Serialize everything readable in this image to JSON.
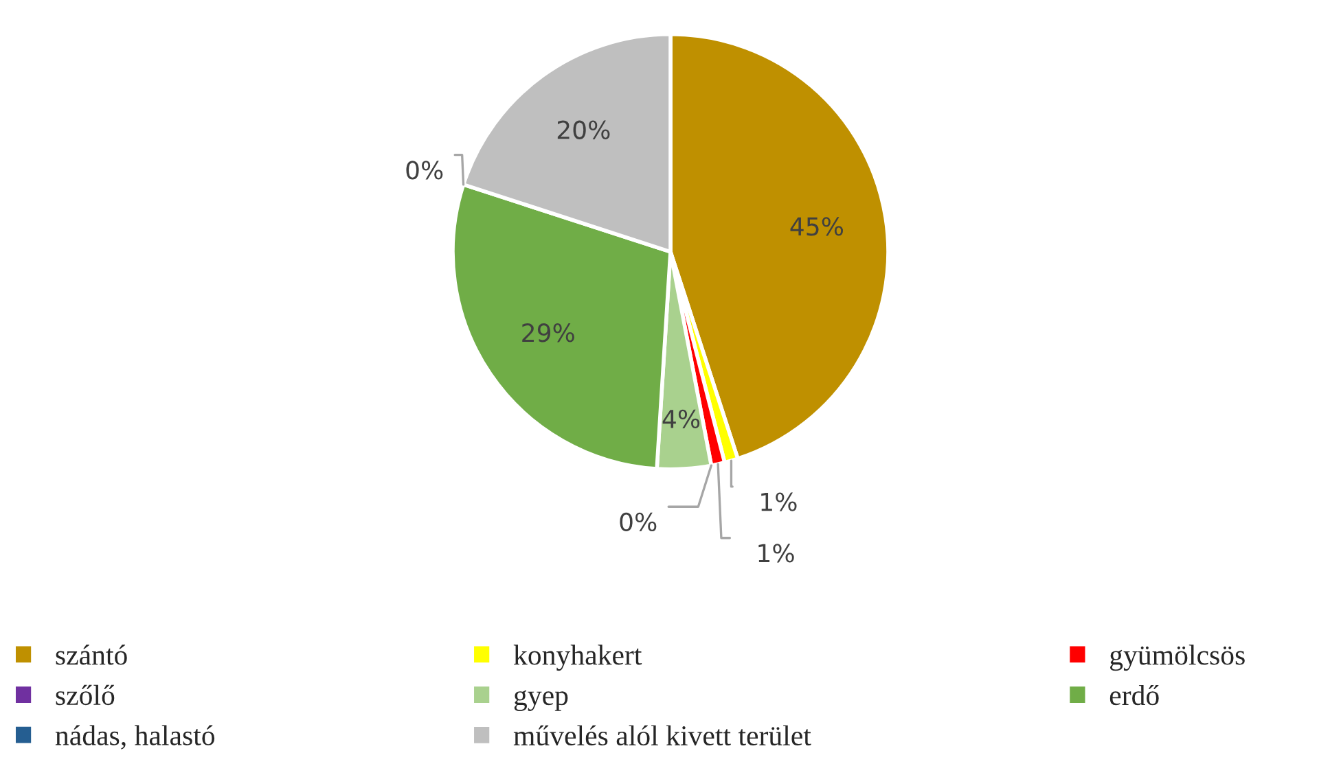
{
  "chart_data": {
    "type": "pie",
    "categories": [
      "szántó",
      "konyhakert",
      "gyümölcsös",
      "szőlő",
      "gyep",
      "erdő",
      "nádas, halastó",
      "művelés alól kivett terület"
    ],
    "values": [
      45,
      1,
      1,
      0,
      4,
      29,
      0,
      20
    ],
    "value_labels": [
      "45%",
      "1%",
      "1%",
      "0%",
      "4%",
      "29%",
      "0%",
      "20%"
    ],
    "colors": [
      "#bf9000",
      "#ffff00",
      "#ff0000",
      "#7030a0",
      "#a9d18e",
      "#70ad47",
      "#255e91",
      "#bfbfbf"
    ],
    "legend": "bottom"
  }
}
